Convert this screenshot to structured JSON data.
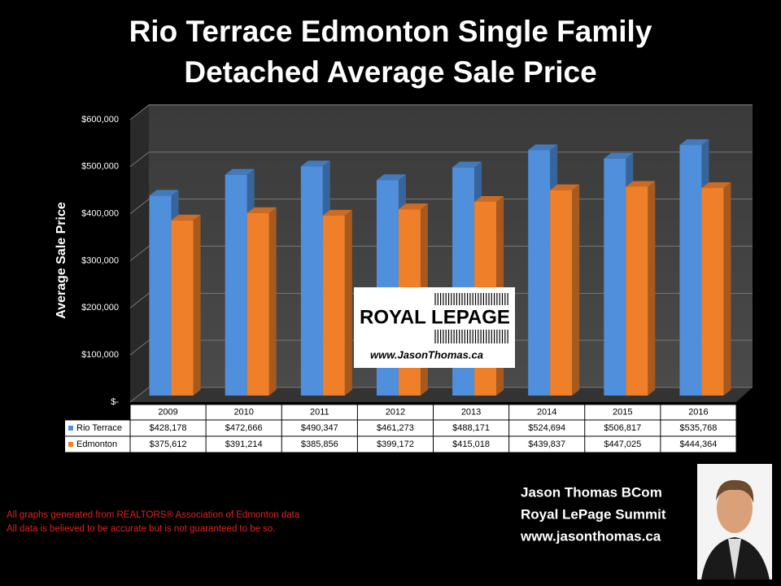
{
  "chart_data": {
    "type": "bar",
    "title": "Rio Terrace Edmonton Single Family Detached Average Sale Price",
    "y_label": "Average Sale Price",
    "categories": [
      "2009",
      "2010",
      "2011",
      "2012",
      "2013",
      "2014",
      "2015",
      "2016"
    ],
    "series": [
      {
        "name": "Rio Terrace",
        "color": "#4f8fdc",
        "values": [
          428178,
          472666,
          490347,
          461273,
          488171,
          524694,
          506817,
          535768
        ],
        "value_labels": [
          "$428,178",
          "$472,666",
          "$490,347",
          "$461,273",
          "$488,171",
          "$524,694",
          "$506,817",
          "$535,768"
        ]
      },
      {
        "name": "Edmonton",
        "color": "#f07f2a",
        "values": [
          375612,
          391214,
          385856,
          399172,
          415018,
          439837,
          447025,
          444364
        ],
        "value_labels": [
          "$375,612",
          "$391,214",
          "$385,856",
          "$399,172",
          "$415,018",
          "$439,837",
          "$447,025",
          "$444,364"
        ]
      }
    ],
    "ylim": [
      0,
      600000
    ],
    "yticks": [
      {
        "value": 0,
        "label": "$-"
      },
      {
        "value": 100000,
        "label": "$100,000"
      },
      {
        "value": 200000,
        "label": "$200,000"
      },
      {
        "value": 300000,
        "label": "$300,000"
      },
      {
        "value": 400000,
        "label": "$400,000"
      },
      {
        "value": 500000,
        "label": "$500,000"
      },
      {
        "value": 600000,
        "label": "$600,000"
      }
    ],
    "grid": true
  },
  "logo": {
    "brand": "ROYAL LEPAGE",
    "url": "www.JasonThomas.ca"
  },
  "notes": [
    "All graphs generated from REALTORS® Association of Edmonton data",
    "All data is believed to be accurate but is not guaranteed to be so."
  ],
  "author": [
    "Jason Thomas BCom",
    "Royal LePage Summit",
    "www.jasonthomas.ca"
  ]
}
